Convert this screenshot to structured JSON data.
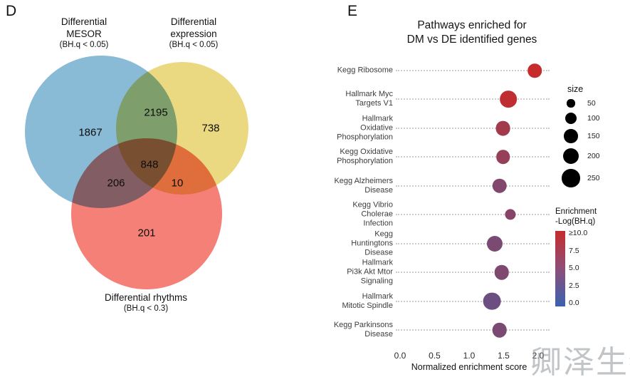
{
  "panel_d": {
    "label": "D",
    "venn": {
      "sets": [
        {
          "name_lines": [
            "Differential",
            "MESOR"
          ],
          "threshold": "(BH.q < 0.05)",
          "color": "#74AECF",
          "unique_count": "1867"
        },
        {
          "name_lines": [
            "Differential",
            "expression"
          ],
          "threshold": "(BH.q < 0.05)",
          "color": "#E7D36A",
          "unique_count": "738"
        },
        {
          "name_lines": [
            "Differential rhythms"
          ],
          "threshold": "(BH.q < 0.3)",
          "color": "#F2695F",
          "unique_count": "201"
        }
      ],
      "overlaps": {
        "mesor_and_expression": "2195",
        "all_three": "848",
        "mesor_and_rhythms": "206",
        "expression_and_rhythms": "10"
      }
    }
  },
  "panel_e": {
    "label": "E",
    "title_line1": "Pathways enriched for",
    "title_line2": "DM vs DE identified genes",
    "x_axis_label": "Normalized enrichment score",
    "chart_data": {
      "type": "scatter",
      "xlabel": "Normalized enrichment score",
      "xlim": [
        0.0,
        2.2
      ],
      "x_ticks": [
        0.0,
        0.5,
        1.0,
        1.5,
        2.0
      ],
      "grid": "horizontal-dotted",
      "pathways": [
        {
          "label_lines": [
            "Kegg Ribosome"
          ],
          "nes": 1.95,
          "size": 150,
          "neg_log_bhq": 10.0
        },
        {
          "label_lines": [
            "Hallmark Myc",
            "Targets V1"
          ],
          "nes": 1.57,
          "size": 220,
          "neg_log_bhq": 9.5
        },
        {
          "label_lines": [
            "Hallmark",
            "Oxidative",
            "Phosphorylation"
          ],
          "nes": 1.49,
          "size": 170,
          "neg_log_bhq": 7.5
        },
        {
          "label_lines": [
            "Kegg Oxidative",
            "Phosphorylation"
          ],
          "nes": 1.49,
          "size": 150,
          "neg_log_bhq": 6.5
        },
        {
          "label_lines": [
            "Kegg Alzheimers",
            "Disease"
          ],
          "nes": 1.44,
          "size": 165,
          "neg_log_bhq": 5.0
        },
        {
          "label_lines": [
            "Kegg Vibrio",
            "Cholerae",
            "Infection"
          ],
          "nes": 1.6,
          "size": 90,
          "neg_log_bhq": 5.5
        },
        {
          "label_lines": [
            "Kegg",
            "Huntingtons",
            "Disease"
          ],
          "nes": 1.37,
          "size": 190,
          "neg_log_bhq": 4.5
        },
        {
          "label_lines": [
            "Hallmark",
            "Pi3k Akt Mtor",
            "Signaling"
          ],
          "nes": 1.47,
          "size": 165,
          "neg_log_bhq": 4.8
        },
        {
          "label_lines": [
            "Hallmark",
            "Mitotic Spindle"
          ],
          "nes": 1.33,
          "size": 240,
          "neg_log_bhq": 3.5
        },
        {
          "label_lines": [
            "Kegg Parkinsons",
            "Disease"
          ],
          "nes": 1.44,
          "size": 165,
          "neg_log_bhq": 4.5
        }
      ]
    },
    "size_legend": {
      "title": "size",
      "values": [
        50,
        100,
        150,
        200,
        250
      ]
    },
    "color_scale": {
      "title_line1": "Enrichment",
      "title_line2": "-Log(BH.q)",
      "tick_labels": [
        "≥10.0",
        "7.5",
        "5.0",
        "2.5",
        "0.0"
      ],
      "min_hex": "#3B62AD",
      "mid_hex": "#8D4E78",
      "max_hex": "#C62C2C",
      "min_rgb": [
        59,
        98,
        173
      ],
      "max_rgb": [
        198,
        44,
        44
      ]
    }
  },
  "watermark": {
    "text": "卿泽生物"
  }
}
